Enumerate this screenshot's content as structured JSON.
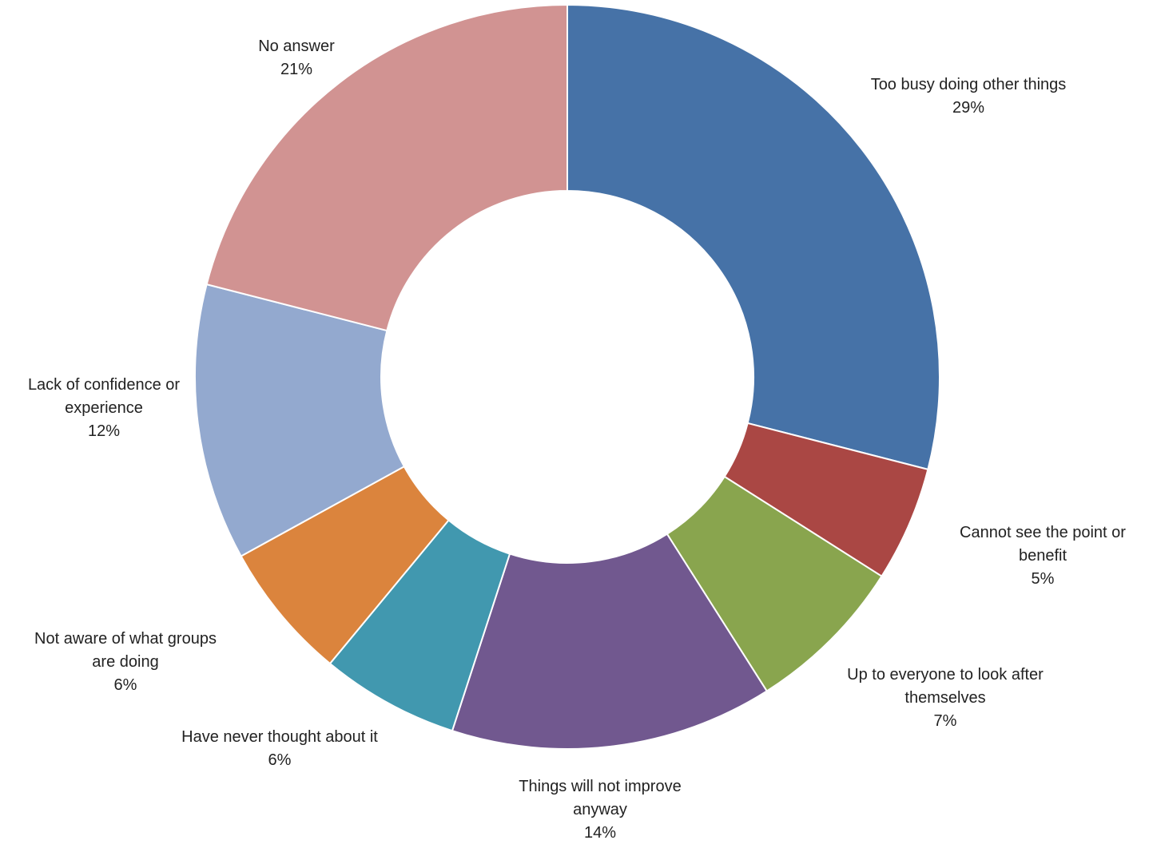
{
  "chart_data": {
    "type": "pie",
    "donut": true,
    "title": "",
    "legend": "none",
    "slices": [
      {
        "label_lines": [
          "Too busy doing other things"
        ],
        "value_label": "29%",
        "value": 29,
        "color": "#4672A7"
      },
      {
        "label_lines": [
          "Cannot see the point or",
          "benefit"
        ],
        "value_label": "5%",
        "value": 5,
        "color": "#AA4744"
      },
      {
        "label_lines": [
          "Up to everyone to look after",
          "themselves"
        ],
        "value_label": "7%",
        "value": 7,
        "color": "#89A54E"
      },
      {
        "label_lines": [
          "Things will not improve",
          "anyway"
        ],
        "value_label": "14%",
        "value": 14,
        "color": "#71588F"
      },
      {
        "label_lines": [
          "Have never thought about it"
        ],
        "value_label": "6%",
        "value": 6,
        "color": "#4198AF"
      },
      {
        "label_lines": [
          "Not aware of what groups",
          "are doing"
        ],
        "value_label": "6%",
        "value": 6,
        "color": "#DB843D"
      },
      {
        "label_lines": [
          "Lack of confidence or",
          "experience"
        ],
        "value_label": "12%",
        "value": 12,
        "color": "#93A9CF"
      },
      {
        "label_lines": [
          "No answer"
        ],
        "value_label": "21%",
        "value": 21,
        "color": "#D19392"
      }
    ]
  }
}
